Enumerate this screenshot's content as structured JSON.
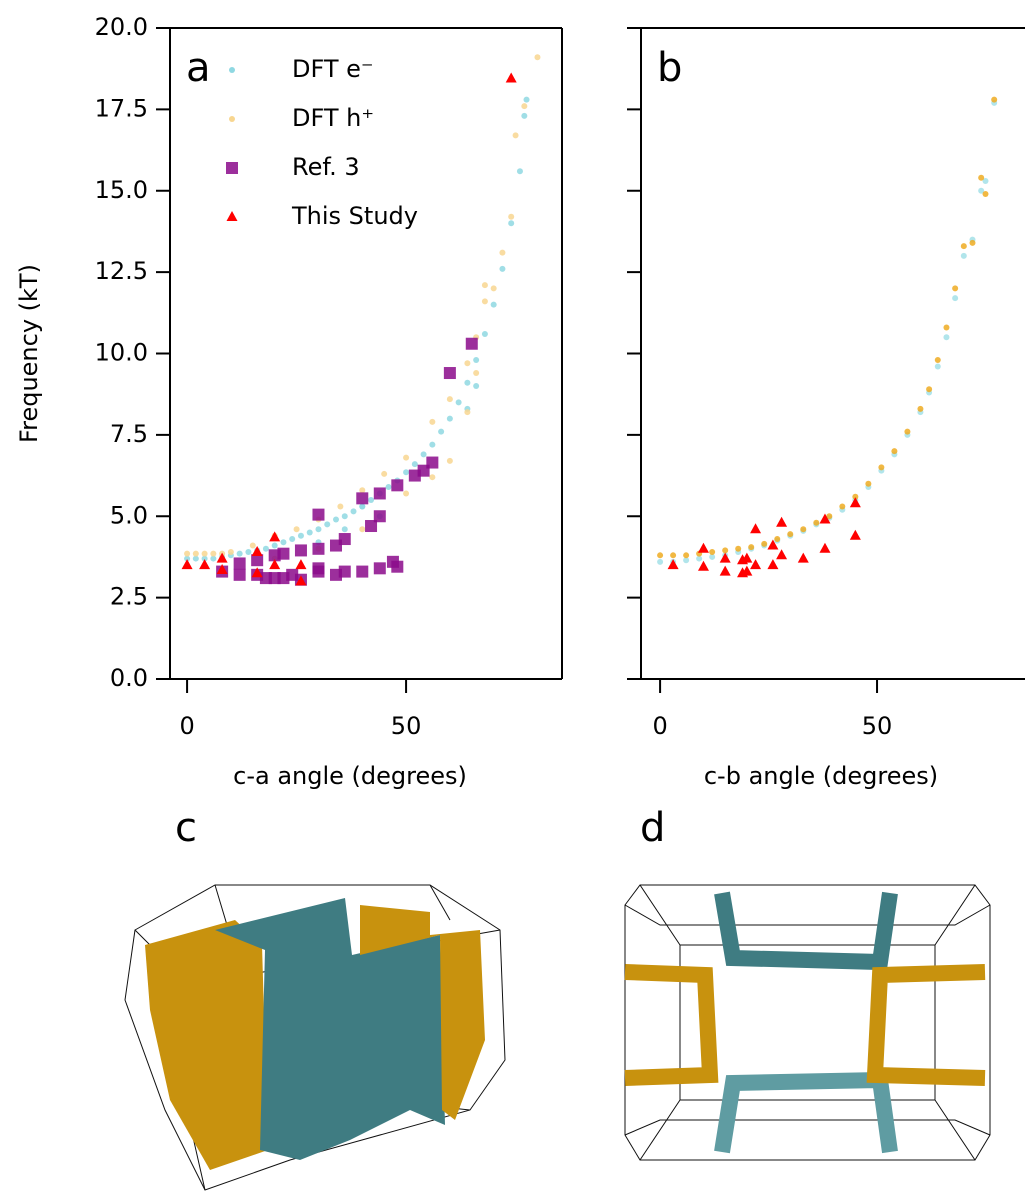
{
  "chart_data": [
    {
      "type": "scatter",
      "panel_label": "a",
      "xlabel": "c-a angle (degrees)",
      "ylabel": "Frequency (kT)",
      "xlim": [
        -3.9,
        85.6
      ],
      "ylim": [
        0,
        20
      ],
      "xticks": [
        0,
        50
      ],
      "yticks": [
        {
          "value": 0,
          "label": "0.0"
        },
        2.5,
        {
          "value": 5,
          "label": "5.0"
        },
        7.5,
        {
          "value": 10,
          "label": "10.0"
        },
        12.5,
        {
          "value": 15,
          "label": "15.0"
        },
        17.5,
        {
          "value": 20,
          "label": "20.0"
        }
      ],
      "ytick_labels": true,
      "legend": "upper left",
      "series": [
        {
          "name": "DFT e⁻",
          "color": "#8fd8e2",
          "marker": "circle",
          "x": [
            0,
            2,
            4,
            6,
            8,
            10,
            12,
            14,
            16,
            18,
            20,
            22,
            24,
            26,
            28,
            30,
            32,
            34,
            36,
            38,
            40,
            42,
            44,
            46,
            48,
            50,
            52,
            54,
            56,
            58,
            60,
            62,
            64,
            66,
            68,
            70,
            72,
            74,
            76,
            77,
            77.5,
            30,
            36,
            40,
            44,
            64,
            66
          ],
          "values": [
            3.7,
            3.7,
            3.7,
            3.7,
            3.75,
            3.8,
            3.85,
            3.9,
            3.95,
            4.0,
            4.1,
            4.2,
            4.3,
            4.4,
            4.5,
            4.6,
            4.75,
            4.9,
            5.0,
            5.15,
            5.3,
            5.5,
            5.7,
            5.9,
            6.1,
            6.35,
            6.6,
            6.9,
            7.2,
            7.6,
            8.0,
            8.5,
            9.1,
            9.8,
            10.6,
            11.5,
            12.6,
            14.0,
            15.6,
            17.3,
            17.8,
            4.2,
            4.6,
            5.3,
            5.0,
            8.3,
            9.0
          ]
        },
        {
          "name": "DFT h⁺",
          "color": "#f8d690",
          "marker": "circle",
          "x": [
            0,
            2,
            4,
            6,
            8,
            10,
            15,
            20,
            25,
            30,
            35,
            40,
            45,
            50,
            56,
            60,
            64,
            66,
            68,
            70,
            72,
            74,
            75,
            77,
            80,
            20,
            30,
            40,
            50,
            56,
            60,
            64,
            66,
            68
          ],
          "values": [
            3.85,
            3.85,
            3.85,
            3.85,
            3.85,
            3.9,
            4.1,
            4.4,
            4.6,
            4.9,
            5.3,
            5.8,
            6.3,
            6.8,
            7.9,
            8.6,
            9.7,
            10.5,
            11.6,
            12.0,
            13.1,
            14.2,
            16.7,
            17.6,
            19.1,
            3.7,
            4.0,
            4.6,
            5.7,
            6.2,
            6.7,
            8.2,
            9.4,
            12.1
          ]
        },
        {
          "name": "Ref. 3",
          "color": "#8b0a8b",
          "marker": "square",
          "x": [
            8,
            12,
            16,
            18,
            20,
            22,
            24,
            26,
            30,
            30,
            34,
            36,
            40,
            44,
            47,
            48,
            12,
            16,
            20,
            22,
            26,
            30,
            30,
            34,
            36,
            40,
            42,
            44,
            44,
            48,
            52,
            54,
            56,
            60,
            65
          ],
          "values": [
            3.3,
            3.2,
            3.2,
            3.1,
            3.1,
            3.1,
            3.2,
            3.05,
            3.3,
            3.4,
            3.2,
            3.3,
            3.3,
            3.4,
            3.6,
            3.45,
            3.55,
            3.65,
            3.8,
            3.85,
            3.95,
            4.0,
            5.05,
            4.1,
            4.3,
            5.55,
            4.7,
            5.0,
            5.7,
            5.95,
            6.25,
            6.4,
            6.65,
            9.4,
            10.3
          ]
        },
        {
          "name": "This Study",
          "color": "#ff0000",
          "marker": "triangle",
          "x": [
            0,
            4,
            8,
            8,
            16,
            16,
            20,
            20,
            26,
            26,
            74
          ],
          "values": [
            3.5,
            3.5,
            3.7,
            3.35,
            3.9,
            3.25,
            4.35,
            3.5,
            3.5,
            3.0,
            18.45
          ]
        }
      ]
    },
    {
      "type": "scatter",
      "panel_label": "b",
      "xlabel": "c-b angle (degrees)",
      "xlim": [
        -4.4,
        84.1
      ],
      "ylim": [
        0,
        20
      ],
      "xticks": [
        0,
        50
      ],
      "yticks": [
        0,
        2.5,
        5,
        7.5,
        10,
        12.5,
        15,
        17.5,
        20
      ],
      "ytick_labels": false,
      "series": [
        {
          "name": "DFT e⁻",
          "color": "#a3e0e8",
          "marker": "circle",
          "x": [
            0,
            3,
            6,
            9,
            12,
            15,
            18,
            21,
            24,
            27,
            30,
            33,
            36,
            39,
            42,
            45,
            48,
            51,
            54,
            57,
            60,
            62,
            64,
            66,
            68,
            70,
            72,
            74,
            75,
            77
          ],
          "values": [
            3.6,
            3.6,
            3.65,
            3.7,
            3.75,
            3.8,
            3.9,
            4.0,
            4.1,
            4.25,
            4.4,
            4.55,
            4.75,
            4.95,
            5.2,
            5.5,
            5.9,
            6.4,
            6.9,
            7.5,
            8.2,
            8.8,
            9.6,
            10.5,
            11.7,
            13.0,
            13.5,
            15.0,
            15.3,
            17.7
          ]
        },
        {
          "name": "DFT h⁺",
          "color": "#eeab22",
          "marker": "circle",
          "x": [
            0,
            3,
            6,
            9,
            12,
            15,
            18,
            21,
            24,
            27,
            30,
            33,
            36,
            39,
            42,
            45,
            48,
            51,
            54,
            57,
            60,
            62,
            64,
            66,
            68,
            70,
            72,
            74,
            75,
            77
          ],
          "values": [
            3.8,
            3.8,
            3.8,
            3.85,
            3.9,
            3.95,
            4.0,
            4.05,
            4.15,
            4.3,
            4.45,
            4.6,
            4.8,
            5.0,
            5.3,
            5.6,
            6.0,
            6.5,
            7.0,
            7.6,
            8.3,
            8.9,
            9.8,
            10.8,
            12.0,
            13.3,
            13.4,
            15.4,
            14.9,
            17.8
          ]
        },
        {
          "name": "This Study",
          "color": "#ff0000",
          "marker": "triangle",
          "x": [
            3,
            10,
            10,
            15,
            15,
            19,
            19,
            20,
            20,
            22,
            22,
            26,
            26,
            28,
            28,
            33,
            38,
            38,
            45,
            45
          ],
          "values": [
            3.5,
            4.0,
            3.45,
            3.7,
            3.3,
            3.65,
            3.25,
            3.3,
            3.7,
            3.5,
            4.6,
            4.1,
            3.5,
            4.8,
            3.8,
            3.7,
            4.9,
            4.0,
            5.4,
            4.4
          ]
        }
      ]
    }
  ],
  "images": [
    {
      "label": "c"
    },
    {
      "label": "d"
    }
  ]
}
